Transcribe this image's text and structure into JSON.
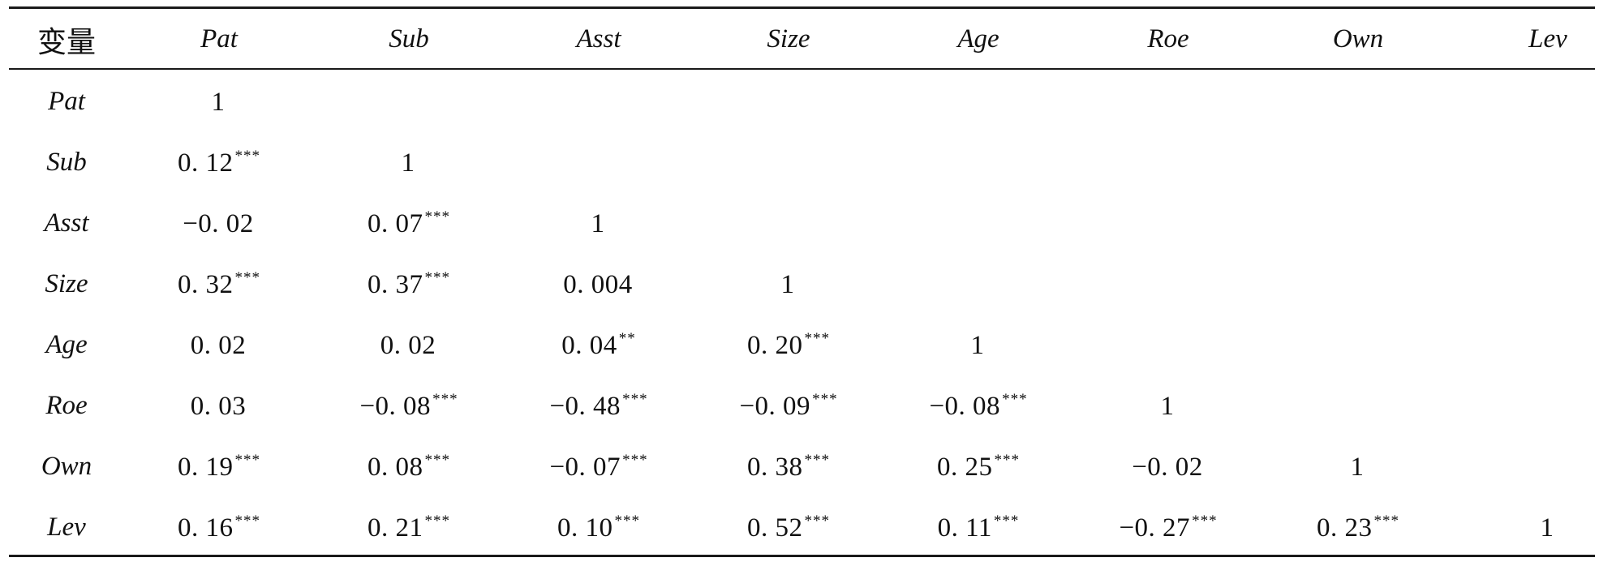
{
  "table": {
    "header": {
      "first": "变量",
      "columns": [
        "Pat",
        "Sub",
        "Asst",
        "Size",
        "Age",
        "Roe",
        "Own",
        "Lev"
      ]
    },
    "rows": [
      {
        "label": "Pat",
        "cells": [
          {
            "v": "1",
            "s": ""
          },
          {
            "v": "",
            "s": ""
          },
          {
            "v": "",
            "s": ""
          },
          {
            "v": "",
            "s": ""
          },
          {
            "v": "",
            "s": ""
          },
          {
            "v": "",
            "s": ""
          },
          {
            "v": "",
            "s": ""
          },
          {
            "v": "",
            "s": ""
          }
        ]
      },
      {
        "label": "Sub",
        "cells": [
          {
            "v": "0. 12",
            "s": "***"
          },
          {
            "v": "1",
            "s": ""
          },
          {
            "v": "",
            "s": ""
          },
          {
            "v": "",
            "s": ""
          },
          {
            "v": "",
            "s": ""
          },
          {
            "v": "",
            "s": ""
          },
          {
            "v": "",
            "s": ""
          },
          {
            "v": "",
            "s": ""
          }
        ]
      },
      {
        "label": "Asst",
        "cells": [
          {
            "v": "−0. 02",
            "s": ""
          },
          {
            "v": "0. 07",
            "s": "***"
          },
          {
            "v": "1",
            "s": ""
          },
          {
            "v": "",
            "s": ""
          },
          {
            "v": "",
            "s": ""
          },
          {
            "v": "",
            "s": ""
          },
          {
            "v": "",
            "s": ""
          },
          {
            "v": "",
            "s": ""
          }
        ]
      },
      {
        "label": "Size",
        "cells": [
          {
            "v": "0. 32",
            "s": "***"
          },
          {
            "v": "0. 37",
            "s": "***"
          },
          {
            "v": "0. 004",
            "s": ""
          },
          {
            "v": "1",
            "s": ""
          },
          {
            "v": "",
            "s": ""
          },
          {
            "v": "",
            "s": ""
          },
          {
            "v": "",
            "s": ""
          },
          {
            "v": "",
            "s": ""
          }
        ]
      },
      {
        "label": "Age",
        "cells": [
          {
            "v": "0. 02",
            "s": ""
          },
          {
            "v": "0. 02",
            "s": ""
          },
          {
            "v": "0. 04",
            "s": "**"
          },
          {
            "v": "0. 20",
            "s": "***"
          },
          {
            "v": "1",
            "s": ""
          },
          {
            "v": "",
            "s": ""
          },
          {
            "v": "",
            "s": ""
          },
          {
            "v": "",
            "s": ""
          }
        ]
      },
      {
        "label": "Roe",
        "cells": [
          {
            "v": "0. 03",
            "s": ""
          },
          {
            "v": "−0. 08",
            "s": "***"
          },
          {
            "v": "−0. 48",
            "s": "***"
          },
          {
            "v": "−0. 09",
            "s": "***"
          },
          {
            "v": "−0. 08",
            "s": "***"
          },
          {
            "v": "1",
            "s": ""
          },
          {
            "v": "",
            "s": ""
          },
          {
            "v": "",
            "s": ""
          }
        ]
      },
      {
        "label": "Own",
        "cells": [
          {
            "v": "0. 19",
            "s": "***"
          },
          {
            "v": "0. 08",
            "s": "***"
          },
          {
            "v": "−0. 07",
            "s": "***"
          },
          {
            "v": "0. 38",
            "s": "***"
          },
          {
            "v": "0. 25",
            "s": "***"
          },
          {
            "v": "−0. 02",
            "s": ""
          },
          {
            "v": "1",
            "s": ""
          },
          {
            "v": "",
            "s": ""
          }
        ]
      },
      {
        "label": "Lev",
        "cells": [
          {
            "v": "0. 16",
            "s": "***"
          },
          {
            "v": "0. 21",
            "s": "***"
          },
          {
            "v": "0. 10",
            "s": "***"
          },
          {
            "v": "0. 52",
            "s": "***"
          },
          {
            "v": "0. 11",
            "s": "***"
          },
          {
            "v": "−0. 27",
            "s": "***"
          },
          {
            "v": "0. 23",
            "s": "***"
          },
          {
            "v": "1",
            "s": ""
          }
        ]
      }
    ]
  }
}
